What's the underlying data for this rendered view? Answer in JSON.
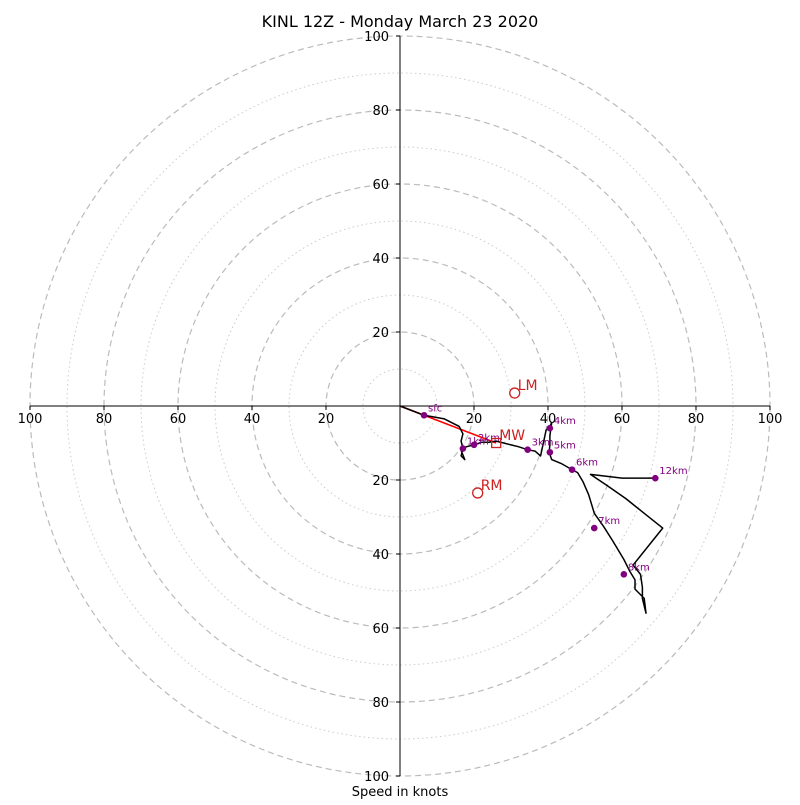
{
  "chart_data": {
    "type": "hodograph",
    "title": "KINL 12Z - Monday March 23 2020",
    "xlabel": "Speed in knots",
    "units": "knots",
    "range": [
      -100,
      100
    ],
    "major_rings": [
      20,
      40,
      60,
      80,
      100
    ],
    "minor_rings": [
      10,
      30,
      50,
      70,
      90
    ],
    "x_ticks": [
      "100",
      "80",
      "60",
      "40",
      "20",
      "20",
      "40",
      "60",
      "80",
      "100"
    ],
    "x_tick_values": [
      -100,
      -80,
      -60,
      -40,
      -20,
      20,
      40,
      60,
      80,
      100
    ],
    "y_ticks": [
      "100",
      "80",
      "60",
      "40",
      "20",
      "20",
      "40",
      "60",
      "80",
      "100"
    ],
    "y_tick_values": [
      100,
      80,
      60,
      40,
      20,
      -20,
      -40,
      -60,
      -80,
      -100
    ],
    "grid": true,
    "colors": {
      "hodograph": "#000000",
      "height_marker": "#800080",
      "storm_motion": "#cc2222",
      "shear_vector": "#ff0000",
      "major_grid": "#bbbbbb",
      "minor_grid": "#cccccc"
    },
    "hodograph_trace": [
      [
        0,
        0
      ],
      [
        6.5,
        -2.5
      ],
      [
        12,
        -3.5
      ],
      [
        16,
        -5.5
      ],
      [
        17,
        -7.5
      ],
      [
        16.5,
        -9.5
      ],
      [
        17,
        -11.5
      ],
      [
        16.5,
        -13.5
      ],
      [
        17.5,
        -14.5
      ],
      [
        16.5,
        -12
      ],
      [
        17,
        -11.5
      ],
      [
        18,
        -11
      ],
      [
        20,
        -10.5
      ],
      [
        22,
        -9.8
      ],
      [
        24,
        -9.8
      ],
      [
        26,
        -9.5
      ],
      [
        28,
        -10
      ],
      [
        30,
        -10.5
      ],
      [
        32,
        -11
      ],
      [
        34.5,
        -11.8
      ],
      [
        36.5,
        -12.2
      ],
      [
        38,
        -13.5
      ],
      [
        39.5,
        -6.5
      ],
      [
        40.5,
        -5.5
      ],
      [
        41,
        -4.5
      ],
      [
        40.5,
        -8
      ],
      [
        40.5,
        -10.5
      ],
      [
        40.3,
        -12.5
      ],
      [
        41,
        -14.5
      ],
      [
        43.5,
        -15.5
      ],
      [
        46.5,
        -17.2
      ],
      [
        48,
        -18
      ],
      [
        49.5,
        -20.5
      ],
      [
        51,
        -24
      ],
      [
        52.5,
        -29
      ],
      [
        55,
        -32.5
      ],
      [
        57.5,
        -36.5
      ],
      [
        60.5,
        -41.5
      ],
      [
        62,
        -44.5
      ],
      [
        63.5,
        -47
      ],
      [
        63.5,
        -49.5
      ],
      [
        66,
        -52
      ],
      [
        66.5,
        -56
      ],
      [
        65.5,
        -52
      ],
      [
        65.5,
        -49
      ],
      [
        65,
        -45.5
      ],
      [
        63,
        -43
      ],
      [
        71,
        -33
      ],
      [
        66,
        -29
      ],
      [
        61,
        -25
      ],
      [
        56,
        -21.5
      ],
      [
        51.5,
        -18.5
      ],
      [
        60,
        -19.5
      ],
      [
        69,
        -19.5
      ]
    ],
    "height_markers": [
      {
        "label": "sfc",
        "u": 6.5,
        "v": -2.5
      },
      {
        "label": "1km",
        "u": 17,
        "v": -11.5
      },
      {
        "label": "2km",
        "u": 20,
        "v": -10.5
      },
      {
        "label": "3km",
        "u": 34.5,
        "v": -11.8
      },
      {
        "label": "4km",
        "u": 40.5,
        "v": -6
      },
      {
        "label": "5km",
        "u": 40.5,
        "v": -12.5
      },
      {
        "label": "6km",
        "u": 46.5,
        "v": -17.2
      },
      {
        "label": "7km",
        "u": 52.5,
        "v": -33
      },
      {
        "label": "8km",
        "u": 60.5,
        "v": -45.5
      },
      {
        "label": "12km",
        "u": 69,
        "v": -19.5
      }
    ],
    "storm_motions": [
      {
        "label": "LM",
        "u": 31,
        "v": 3.5,
        "marker": "circle"
      },
      {
        "label": "MW",
        "u": 26,
        "v": -10,
        "marker": "square"
      },
      {
        "label": "RM",
        "u": 21,
        "v": -23.5,
        "marker": "circle"
      }
    ],
    "shear_vector": {
      "from": [
        0,
        0
      ],
      "to": [
        26,
        -10
      ]
    }
  }
}
